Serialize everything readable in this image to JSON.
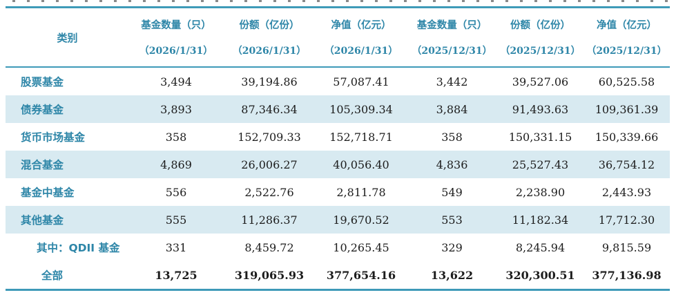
{
  "table": {
    "header": {
      "category_label": "类别",
      "columns": [
        {
          "title": "基金数量（只）",
          "date": "（2026/1/31）"
        },
        {
          "title": "份额（亿份）",
          "date": "（2026/1/31）"
        },
        {
          "title": "净值（亿元）",
          "date": "（2026/1/31）"
        },
        {
          "title": "基金数量（只）",
          "date": "（2025/12/31）"
        },
        {
          "title": "份额（亿份）",
          "date": "（2025/12/31）"
        },
        {
          "title": "净值（亿元）",
          "date": "（2025/12/31）"
        }
      ]
    },
    "rows": [
      {
        "category": "股票基金",
        "values": [
          "3,494",
          "39,194.86",
          "57,087.41",
          "3,442",
          "39,527.06",
          "60,525.58"
        ],
        "shaded": false,
        "indent": false,
        "total": false
      },
      {
        "category": "债券基金",
        "values": [
          "3,893",
          "87,346.34",
          "105,309.34",
          "3,884",
          "91,493.63",
          "109,361.39"
        ],
        "shaded": true,
        "indent": false,
        "total": false
      },
      {
        "category": "货币市场基金",
        "values": [
          "358",
          "152,709.33",
          "152,718.71",
          "358",
          "150,331.15",
          "150,339.66"
        ],
        "shaded": false,
        "indent": false,
        "total": false
      },
      {
        "category": "混合基金",
        "values": [
          "4,869",
          "26,006.27",
          "40,056.40",
          "4,836",
          "25,527.43",
          "36,754.12"
        ],
        "shaded": true,
        "indent": false,
        "total": false
      },
      {
        "category": "基金中基金",
        "values": [
          "556",
          "2,522.76",
          "2,811.78",
          "549",
          "2,238.90",
          "2,443.93"
        ],
        "shaded": false,
        "indent": false,
        "total": false
      },
      {
        "category": "其他基金",
        "values": [
          "555",
          "11,286.37",
          "19,670.52",
          "553",
          "11,182.34",
          "17,712.30"
        ],
        "shaded": true,
        "indent": false,
        "total": false
      },
      {
        "category": "其中：QDII 基金",
        "values": [
          "331",
          "8,459.72",
          "10,265.45",
          "329",
          "8,245.94",
          "9,815.59"
        ],
        "shaded": false,
        "indent": true,
        "total": false
      },
      {
        "category": "全部",
        "values": [
          "13,725",
          "319,065.93",
          "377,654.16",
          "13,622",
          "320,300.51",
          "377,136.98"
        ],
        "shaded": false,
        "indent": false,
        "total": true
      }
    ]
  },
  "colors": {
    "accent_teal_text": "#2e86a8",
    "border_teal": "#3e9ab8",
    "shaded_row_bg": "#d8eaf1",
    "number_text": "#1c1c1c",
    "page_bg": "#ffffff"
  }
}
